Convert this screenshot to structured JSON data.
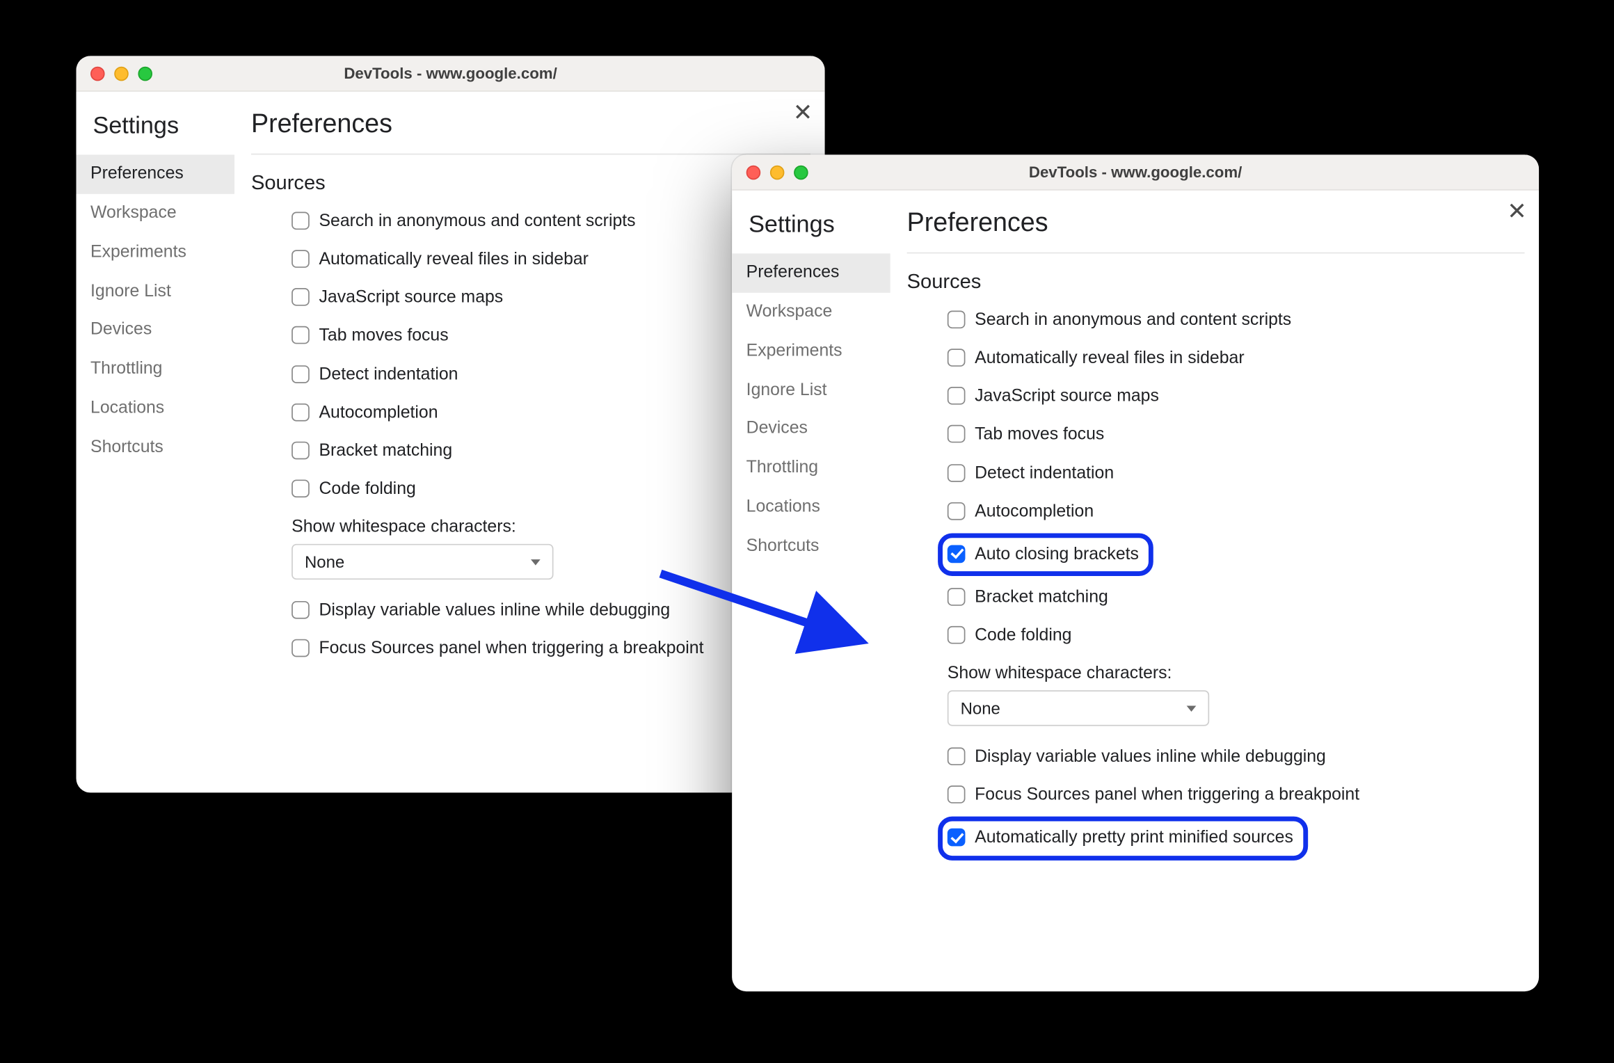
{
  "colors": {
    "page_bg": "#000000",
    "window_bg": "#ffffff",
    "titlebar_bg": "#f2f0ee",
    "highlight_ring": "#1030eb",
    "arrow": "#1030eb",
    "checked_bg": "#0a60ff",
    "nav_active_bg": "#eaeaea",
    "text": "#202124",
    "muted_text": "#6f6f6f"
  },
  "window_left": {
    "title": "DevTools - www.google.com/",
    "settings_heading": "Settings",
    "nav": [
      {
        "label": "Preferences",
        "active": true
      },
      {
        "label": "Workspace",
        "active": false
      },
      {
        "label": "Experiments",
        "active": false
      },
      {
        "label": "Ignore List",
        "active": false
      },
      {
        "label": "Devices",
        "active": false
      },
      {
        "label": "Throttling",
        "active": false
      },
      {
        "label": "Locations",
        "active": false
      },
      {
        "label": "Shortcuts",
        "active": false
      }
    ],
    "prefs_heading": "Preferences",
    "section_heading": "Sources",
    "checkbox_options": [
      {
        "label": "Search in anonymous and content scripts",
        "checked": false
      },
      {
        "label": "Automatically reveal files in sidebar",
        "checked": false
      },
      {
        "label": "JavaScript source maps",
        "checked": false
      },
      {
        "label": "Tab moves focus",
        "checked": false
      },
      {
        "label": "Detect indentation",
        "checked": false
      },
      {
        "label": "Autocompletion",
        "checked": false
      },
      {
        "label": "Bracket matching",
        "checked": false
      },
      {
        "label": "Code folding",
        "checked": false
      }
    ],
    "whitespace_label": "Show whitespace characters:",
    "whitespace_value": "None",
    "tail_options": [
      {
        "label": "Display variable values inline while debugging",
        "checked": false
      },
      {
        "label": "Focus Sources panel when triggering a breakpoint",
        "checked": false
      }
    ]
  },
  "window_right": {
    "title": "DevTools - www.google.com/",
    "settings_heading": "Settings",
    "nav": [
      {
        "label": "Preferences",
        "active": true
      },
      {
        "label": "Workspace",
        "active": false
      },
      {
        "label": "Experiments",
        "active": false
      },
      {
        "label": "Ignore List",
        "active": false
      },
      {
        "label": "Devices",
        "active": false
      },
      {
        "label": "Throttling",
        "active": false
      },
      {
        "label": "Locations",
        "active": false
      },
      {
        "label": "Shortcuts",
        "active": false
      }
    ],
    "prefs_heading": "Preferences",
    "section_heading": "Sources",
    "checkbox_options": [
      {
        "label": "Search in anonymous and content scripts",
        "checked": false,
        "highlight": false
      },
      {
        "label": "Automatically reveal files in sidebar",
        "checked": false,
        "highlight": false
      },
      {
        "label": "JavaScript source maps",
        "checked": false,
        "highlight": false
      },
      {
        "label": "Tab moves focus",
        "checked": false,
        "highlight": false
      },
      {
        "label": "Detect indentation",
        "checked": false,
        "highlight": false
      },
      {
        "label": "Autocompletion",
        "checked": false,
        "highlight": false
      },
      {
        "label": "Auto closing brackets",
        "checked": true,
        "highlight": true
      },
      {
        "label": "Bracket matching",
        "checked": false,
        "highlight": false
      },
      {
        "label": "Code folding",
        "checked": false,
        "highlight": false
      }
    ],
    "whitespace_label": "Show whitespace characters:",
    "whitespace_value": "None",
    "tail_options": [
      {
        "label": "Display variable values inline while debugging",
        "checked": false,
        "highlight": false
      },
      {
        "label": "Focus Sources panel when triggering a breakpoint",
        "checked": false,
        "highlight": false
      },
      {
        "label": "Automatically pretty print minified sources",
        "checked": true,
        "highlight": true
      }
    ]
  }
}
